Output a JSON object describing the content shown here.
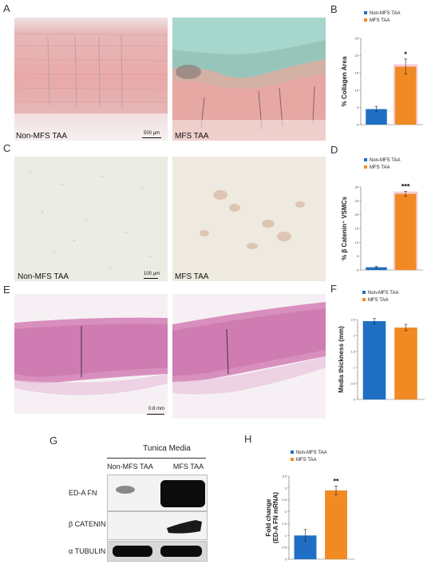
{
  "panels": {
    "A": {
      "letter": "A",
      "left_caption": "Non-MFS TAA",
      "right_caption": "MFS TAA",
      "scale_label": "500 µm"
    },
    "C": {
      "letter": "C",
      "left_caption": "Non-MFS TAA",
      "right_caption": "MFS TAA",
      "scale_label": "100 µm"
    },
    "E": {
      "letter": "E",
      "scale_label": "0.8 mm"
    },
    "G": {
      "letter": "G",
      "header": "Tunica Media",
      "lanes": [
        "Non-MFS TAA",
        "MFS TAA"
      ],
      "rows": [
        "ED-A FN",
        "β CATENIN",
        "α TUBULIN"
      ]
    }
  },
  "colors": {
    "non_mfs": "#1f6fc4",
    "mfs": "#f28a24",
    "mfs_glow": "#f6c2cf"
  },
  "chart_data": [
    {
      "letter": "B",
      "type": "bar",
      "categories": [
        "Non-MFS TAA",
        "MFS TAA"
      ],
      "values": [
        4.5,
        16.8
      ],
      "errors": [
        0.8,
        2.2
      ],
      "ylim": [
        0,
        25
      ],
      "ticks": [
        0,
        5,
        10,
        15,
        20,
        25
      ],
      "ylabel": "% Collagen Area",
      "significance": "*",
      "legend": [
        "Non-MFS TAA",
        "MFS TAA"
      ]
    },
    {
      "letter": "D",
      "type": "bar",
      "categories": [
        "Non-MFS TAA",
        "MFS TAA"
      ],
      "values": [
        1.0,
        27.5
      ],
      "errors": [
        0.3,
        0.9
      ],
      "ylim": [
        0,
        30
      ],
      "ticks": [
        0,
        5,
        10,
        15,
        20,
        25,
        30
      ],
      "ylabel": "% β Catenin⁺ VSMCs",
      "significance": "***",
      "legend": [
        "Non-MFS TAA",
        "MFS TAA"
      ]
    },
    {
      "letter": "F",
      "type": "bar",
      "categories": [
        "Non-MFS TAA",
        "MFS TAA"
      ],
      "values": [
        2.45,
        2.25
      ],
      "errors": [
        0.08,
        0.1
      ],
      "ylim": [
        0,
        2.5
      ],
      "ticks": [
        0,
        0.5,
        1,
        1.5,
        2,
        2.5
      ],
      "ylabel": "Media thickness (mm)",
      "significance": "",
      "legend": [
        "Non-MFS TAA",
        "MFS TAA"
      ]
    },
    {
      "letter": "H",
      "type": "bar",
      "categories": [
        "Non-MFS TAA",
        "MFS TAA"
      ],
      "values": [
        1.0,
        2.9
      ],
      "errors": [
        0.25,
        0.18
      ],
      "ylim": [
        0,
        3.5
      ],
      "ticks": [
        0,
        0.5,
        1,
        1.5,
        2,
        2.5,
        3,
        3.5
      ],
      "ylabel": "Fold change (ED-A FN mRNA)",
      "significance": "**",
      "legend": [
        "Non-MFS TAA",
        "MFS TAA"
      ]
    }
  ]
}
